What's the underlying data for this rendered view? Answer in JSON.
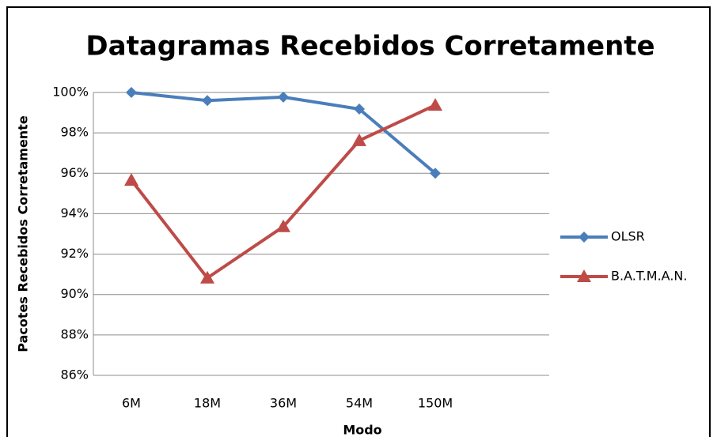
{
  "chart_data": {
    "type": "line",
    "title": "Datagramas Recebidos Corretamente",
    "xlabel": "Modo",
    "ylabel": "Pacotes Recebidos Corretamente",
    "categories": [
      "6M",
      "18M",
      "36M",
      "54M",
      "150M",
      null
    ],
    "series": [
      {
        "name": "OLSR",
        "color": "#4a7ebb",
        "marker": "diamond",
        "values": [
          100,
          99.6,
          99.77,
          99.18,
          96,
          null
        ]
      },
      {
        "name": "B.A.T.M.A.N.",
        "color": "#be4b48",
        "marker": "triangle",
        "values": [
          95.66,
          90.82,
          93.36,
          97.62,
          99.37,
          null
        ]
      }
    ],
    "ylim": [
      86,
      100
    ],
    "yticks": [
      {
        "value": 86,
        "label": "86%"
      },
      {
        "value": 88,
        "label": "88%"
      },
      {
        "value": 90,
        "label": "90%"
      },
      {
        "value": 92,
        "label": "92%"
      },
      {
        "value": 94,
        "label": "94%"
      },
      {
        "value": 96,
        "label": "96%"
      },
      {
        "value": 98,
        "label": "98%"
      },
      {
        "value": 100,
        "label": "100%"
      }
    ],
    "grid": true,
    "legend": "right"
  }
}
